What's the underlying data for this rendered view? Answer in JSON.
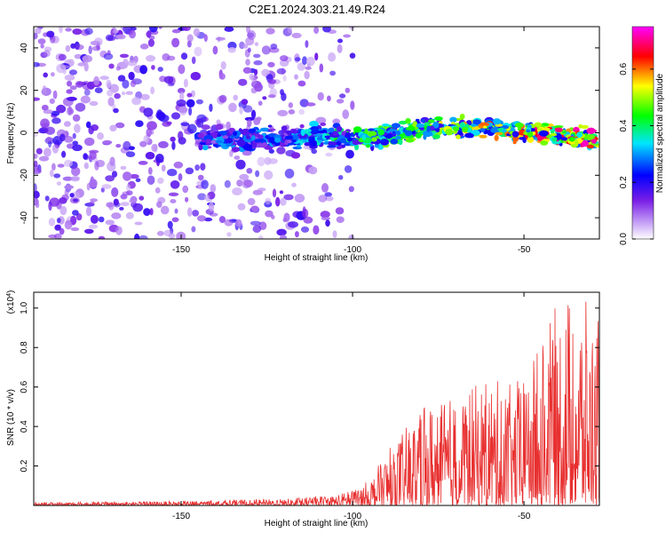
{
  "title": "C2E1.2024.303.21.49.R24",
  "chart_data": [
    {
      "type": "heatmap",
      "xlabel": "Height of straight line (km)",
      "ylabel": "Frequency (Hz)",
      "xlim": [
        -193,
        -28
      ],
      "ylim": [
        -50,
        50
      ],
      "x_ticks": [
        -150,
        -100,
        -50
      ],
      "y_ticks": [
        -40,
        -20,
        0,
        20,
        40
      ],
      "colorbar": {
        "label": "Normalized spectral amplitude",
        "range": [
          0,
          0.75
        ],
        "ticks": [
          "0.0",
          "0.2",
          "0.4",
          "0.6"
        ],
        "colors": [
          "#ffffff",
          "#8a2be2",
          "#0000ff",
          "#00ffff",
          "#00ff00",
          "#ffff00",
          "#ff0000",
          "#ff00ff"
        ]
      },
      "band": {
        "x_start": -145,
        "x_end": -28,
        "center_freq_hz": [
          [
            -145,
            -3
          ],
          [
            -110,
            -2
          ],
          [
            -95,
            -2
          ],
          [
            -75,
            3
          ],
          [
            -60,
            2
          ],
          [
            -45,
            0
          ],
          [
            -30,
            -3
          ]
        ],
        "peak_amplitude": [
          [
            -145,
            0.3
          ],
          [
            -120,
            0.3
          ],
          [
            -100,
            0.45
          ],
          [
            -80,
            0.5
          ],
          [
            -60,
            0.6
          ],
          [
            -40,
            0.7
          ],
          [
            -30,
            0.7
          ]
        ]
      },
      "noise_region": [
        -193,
        -105
      ]
    },
    {
      "type": "line",
      "xlabel": "Height of straight line (km)",
      "ylabel": "SNR (10 * v/v)",
      "y_multiplier": "(x10",
      "y_multiplier_exp": "4",
      "y_multiplier_close": ")",
      "xlim": [
        -193,
        -28
      ],
      "ylim": [
        0,
        1.08
      ],
      "x_ticks": [
        -150,
        -100,
        -50
      ],
      "y_ticks": [
        "0.2",
        "0.4",
        "0.6",
        "0.8",
        "1.0"
      ],
      "color": "#e83030",
      "envelope": [
        [
          -193,
          0.015
        ],
        [
          -150,
          0.02
        ],
        [
          -120,
          0.03
        ],
        [
          -105,
          0.05
        ],
        [
          -100,
          0.07
        ],
        [
          -95,
          0.12
        ],
        [
          -90,
          0.25
        ],
        [
          -85,
          0.35
        ],
        [
          -80,
          0.45
        ],
        [
          -75,
          0.5
        ],
        [
          -70,
          0.5
        ],
        [
          -65,
          0.55
        ],
        [
          -60,
          0.6
        ],
        [
          -55,
          0.55
        ],
        [
          -50,
          0.6
        ],
        [
          -45,
          0.75
        ],
        [
          -40,
          0.95
        ],
        [
          -35,
          1.0
        ],
        [
          -30,
          0.9
        ],
        [
          -28,
          0.85
        ]
      ]
    }
  ]
}
